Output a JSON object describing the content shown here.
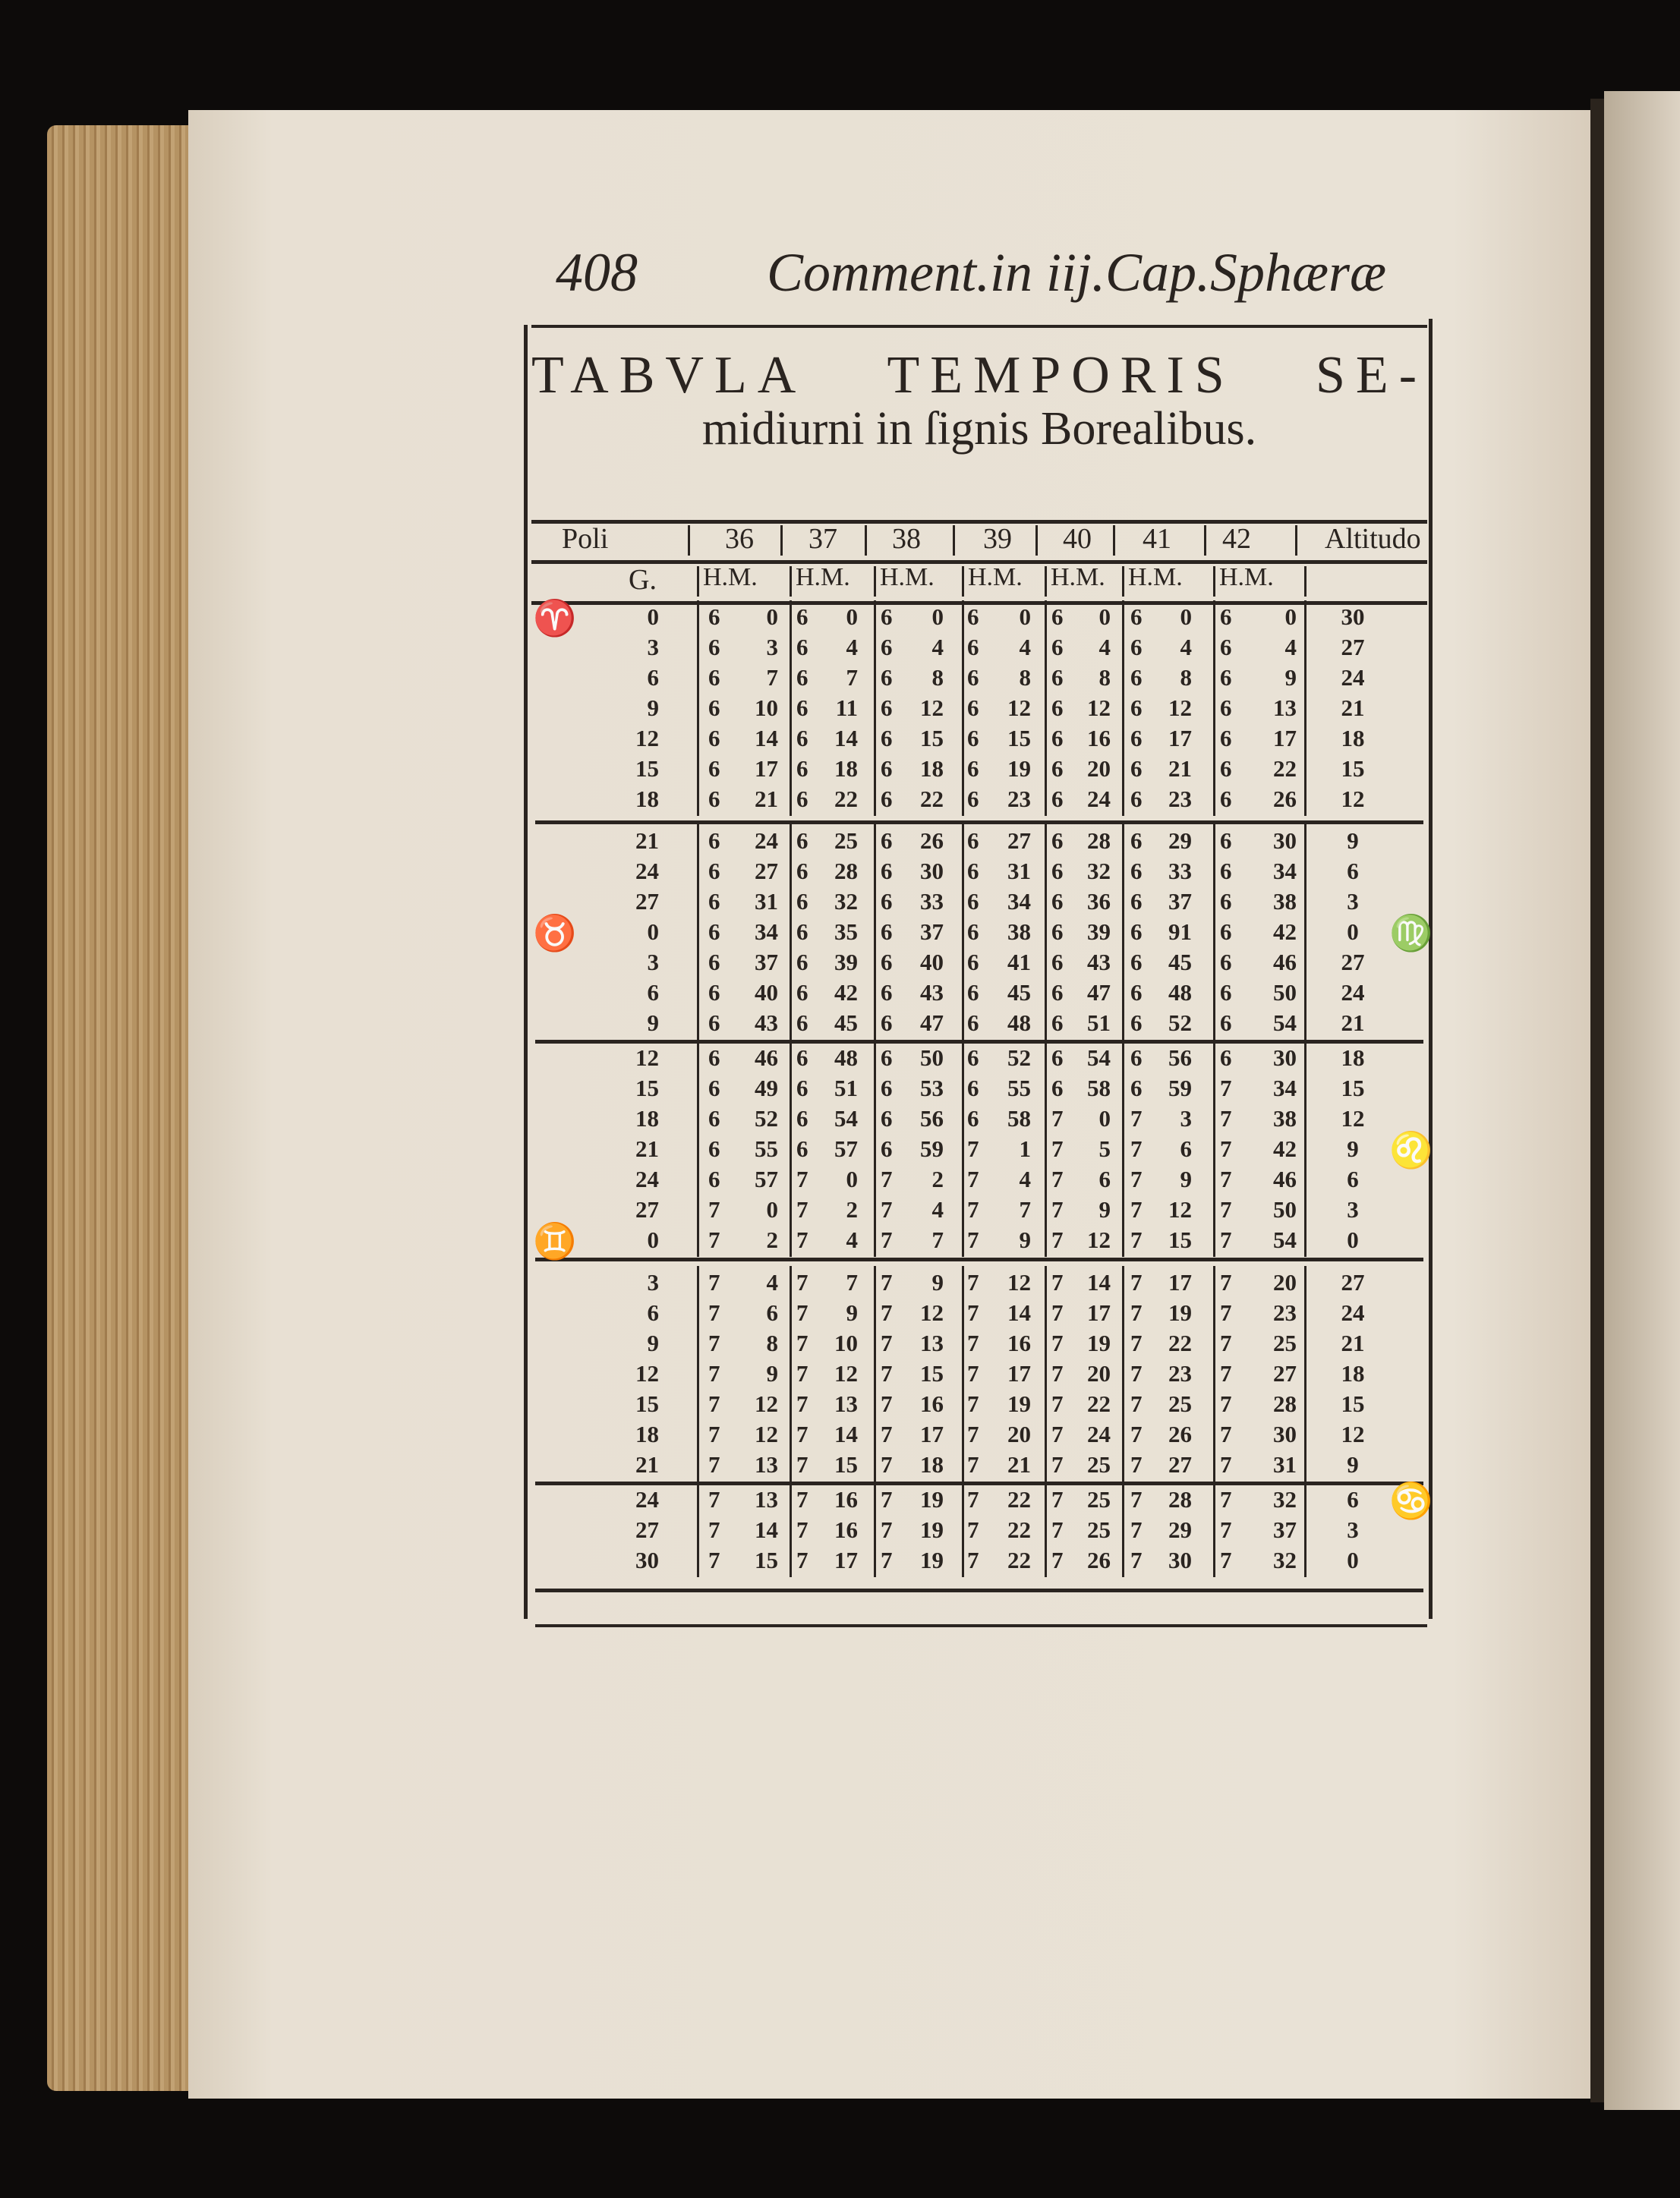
{
  "running_head": {
    "page_number": "408",
    "title": "Comment.in iij.Cap.Sphæræ"
  },
  "table": {
    "title_words": [
      "TABVLA",
      "TEMPORIS",
      "SE-"
    ],
    "title_line2": "midiurni in ſignis Borealibus.",
    "header_row1": {
      "left": "Poli",
      "latitudes": [
        "36",
        "37",
        "38",
        "39",
        "40",
        "41",
        "42"
      ],
      "right": "Altitudo"
    },
    "header_row2": {
      "left": "G.",
      "units": [
        "H.M.",
        "H.M.",
        "H.M.",
        "H.M.",
        "H.M.",
        "H.M.",
        "H.M."
      ]
    },
    "signs": {
      "aries": {
        "glyph": "♈",
        "row": 0,
        "side": "left"
      },
      "taurus": {
        "glyph": "♉",
        "row": 10,
        "side": "left"
      },
      "gemini": {
        "glyph": "♊",
        "row": 20,
        "side": "left"
      },
      "virgo": {
        "glyph": "♍",
        "row": 10,
        "side": "right"
      },
      "leo": {
        "glyph": "♌",
        "row": 17,
        "side": "right"
      },
      "cancer": {
        "glyph": "♋",
        "row": 28,
        "side": "right"
      }
    },
    "groups": [
      {
        "rows": [
          {
            "g": "0",
            "h": [
              "6",
              "6",
              "6",
              "6",
              "6",
              "6",
              "6"
            ],
            "m": [
              "0",
              "0",
              "0",
              "0",
              "0",
              "0",
              "0"
            ],
            "alt": "30"
          },
          {
            "g": "3",
            "h": [
              "6",
              "6",
              "6",
              "6",
              "6",
              "6",
              "6"
            ],
            "m": [
              "3",
              "4",
              "4",
              "4",
              "4",
              "4",
              "4"
            ],
            "alt": "27"
          },
          {
            "g": "6",
            "h": [
              "6",
              "6",
              "6",
              "6",
              "6",
              "6",
              "6"
            ],
            "m": [
              "7",
              "7",
              "8",
              "8",
              "8",
              "8",
              "9"
            ],
            "alt": "24"
          },
          {
            "g": "9",
            "h": [
              "6",
              "6",
              "6",
              "6",
              "6",
              "6",
              "6"
            ],
            "m": [
              "10",
              "11",
              "12",
              "12",
              "12",
              "12",
              "13"
            ],
            "alt": "21"
          },
          {
            "g": "12",
            "h": [
              "6",
              "6",
              "6",
              "6",
              "6",
              "6",
              "6"
            ],
            "m": [
              "14",
              "14",
              "15",
              "15",
              "16",
              "17",
              "17"
            ],
            "alt": "18"
          },
          {
            "g": "15",
            "h": [
              "6",
              "6",
              "6",
              "6",
              "6",
              "6",
              "6"
            ],
            "m": [
              "17",
              "18",
              "18",
              "19",
              "20",
              "21",
              "22"
            ],
            "alt": "15"
          },
          {
            "g": "18",
            "h": [
              "6",
              "6",
              "6",
              "6",
              "6",
              "6",
              "6"
            ],
            "m": [
              "21",
              "22",
              "22",
              "23",
              "24",
              "23",
              "26"
            ],
            "alt": "12"
          }
        ]
      },
      {
        "rows": [
          {
            "g": "21",
            "h": [
              "6",
              "6",
              "6",
              "6",
              "6",
              "6",
              "6"
            ],
            "m": [
              "24",
              "25",
              "26",
              "27",
              "28",
              "29",
              "30"
            ],
            "alt": "9"
          },
          {
            "g": "24",
            "h": [
              "6",
              "6",
              "6",
              "6",
              "6",
              "6",
              "6"
            ],
            "m": [
              "27",
              "28",
              "30",
              "31",
              "32",
              "33",
              "34"
            ],
            "alt": "6"
          },
          {
            "g": "27",
            "h": [
              "6",
              "6",
              "6",
              "6",
              "6",
              "6",
              "6"
            ],
            "m": [
              "31",
              "32",
              "33",
              "34",
              "36",
              "37",
              "38"
            ],
            "alt": "3"
          },
          {
            "g": "0",
            "h": [
              "6",
              "6",
              "6",
              "6",
              "6",
              "6",
              "6"
            ],
            "m": [
              "34",
              "35",
              "37",
              "38",
              "39",
              "91",
              "42"
            ],
            "alt": "0"
          },
          {
            "g": "3",
            "h": [
              "6",
              "6",
              "6",
              "6",
              "6",
              "6",
              "6"
            ],
            "m": [
              "37",
              "39",
              "40",
              "41",
              "43",
              "45",
              "46"
            ],
            "alt": "27"
          },
          {
            "g": "6",
            "h": [
              "6",
              "6",
              "6",
              "6",
              "6",
              "6",
              "6"
            ],
            "m": [
              "40",
              "42",
              "43",
              "45",
              "47",
              "48",
              "50"
            ],
            "alt": "24"
          },
          {
            "g": "9",
            "h": [
              "6",
              "6",
              "6",
              "6",
              "6",
              "6",
              "6"
            ],
            "m": [
              "43",
              "45",
              "47",
              "48",
              "51",
              "52",
              "54"
            ],
            "alt": "21"
          }
        ]
      },
      {
        "rows": [
          {
            "g": "12",
            "h": [
              "6",
              "6",
              "6",
              "6",
              "6",
              "6",
              "6"
            ],
            "m": [
              "46",
              "48",
              "50",
              "52",
              "54",
              "56",
              "30"
            ],
            "alt": "18"
          },
          {
            "g": "15",
            "h": [
              "6",
              "6",
              "6",
              "6",
              "6",
              "6",
              "7"
            ],
            "m": [
              "49",
              "51",
              "53",
              "55",
              "58",
              "59",
              "34"
            ],
            "alt": "15"
          },
          {
            "g": "18",
            "h": [
              "6",
              "6",
              "6",
              "6",
              "7",
              "7",
              "7"
            ],
            "m": [
              "52",
              "54",
              "56",
              "58",
              "0",
              "3",
              "38"
            ],
            "alt": "12"
          },
          {
            "g": "21",
            "h": [
              "6",
              "6",
              "6",
              "7",
              "7",
              "7",
              "7"
            ],
            "m": [
              "55",
              "57",
              "59",
              "1",
              "5",
              "6",
              "42"
            ],
            "alt": "9"
          },
          {
            "g": "24",
            "h": [
              "6",
              "7",
              "7",
              "7",
              "7",
              "7",
              "7"
            ],
            "m": [
              "57",
              "0",
              "2",
              "4",
              "6",
              "9",
              "46"
            ],
            "alt": "6"
          },
          {
            "g": "27",
            "h": [
              "7",
              "7",
              "7",
              "7",
              "7",
              "7",
              "7"
            ],
            "m": [
              "0",
              "2",
              "4",
              "7",
              "9",
              "12",
              "50"
            ],
            "alt": "3"
          },
          {
            "g": "0",
            "h": [
              "7",
              "7",
              "7",
              "7",
              "7",
              "7",
              "7"
            ],
            "m": [
              "2",
              "4",
              "7",
              "9",
              "12",
              "15",
              "54"
            ],
            "alt": "0"
          }
        ]
      },
      {
        "rows": [
          {
            "g": "3",
            "h": [
              "7",
              "7",
              "7",
              "7",
              "7",
              "7",
              "7"
            ],
            "m": [
              "4",
              "7",
              "9",
              "12",
              "14",
              "17",
              "20"
            ],
            "alt": "27"
          },
          {
            "g": "6",
            "h": [
              "7",
              "7",
              "7",
              "7",
              "7",
              "7",
              "7"
            ],
            "m": [
              "6",
              "9",
              "12",
              "14",
              "17",
              "19",
              "23"
            ],
            "alt": "24"
          },
          {
            "g": "9",
            "h": [
              "7",
              "7",
              "7",
              "7",
              "7",
              "7",
              "7"
            ],
            "m": [
              "8",
              "10",
              "13",
              "16",
              "19",
              "22",
              "25"
            ],
            "alt": "21"
          },
          {
            "g": "12",
            "h": [
              "7",
              "7",
              "7",
              "7",
              "7",
              "7",
              "7"
            ],
            "m": [
              "9",
              "12",
              "15",
              "17",
              "20",
              "23",
              "27"
            ],
            "alt": "18"
          },
          {
            "g": "15",
            "h": [
              "7",
              "7",
              "7",
              "7",
              "7",
              "7",
              "7"
            ],
            "m": [
              "12",
              "13",
              "16",
              "19",
              "22",
              "25",
              "28"
            ],
            "alt": "15"
          },
          {
            "g": "18",
            "h": [
              "7",
              "7",
              "7",
              "7",
              "7",
              "7",
              "7"
            ],
            "m": [
              "12",
              "14",
              "17",
              "20",
              "24",
              "26",
              "30"
            ],
            "alt": "12"
          },
          {
            "g": "21",
            "h": [
              "7",
              "7",
              "7",
              "7",
              "7",
              "7",
              "7"
            ],
            "m": [
              "13",
              "15",
              "18",
              "21",
              "25",
              "27",
              "31"
            ],
            "alt": "9"
          }
        ]
      },
      {
        "rows": [
          {
            "g": "24",
            "h": [
              "7",
              "7",
              "7",
              "7",
              "7",
              "7",
              "7"
            ],
            "m": [
              "13",
              "16",
              "19",
              "22",
              "25",
              "28",
              "32"
            ],
            "alt": "6"
          },
          {
            "g": "27",
            "h": [
              "7",
              "7",
              "7",
              "7",
              "7",
              "7",
              "7"
            ],
            "m": [
              "14",
              "16",
              "19",
              "22",
              "25",
              "29",
              "37"
            ],
            "alt": "3"
          },
          {
            "g": "30",
            "h": [
              "7",
              "7",
              "7",
              "7",
              "7",
              "7",
              "7"
            ],
            "m": [
              "15",
              "17",
              "19",
              "22",
              "26",
              "30",
              "32"
            ],
            "alt": "0"
          }
        ]
      }
    ]
  }
}
